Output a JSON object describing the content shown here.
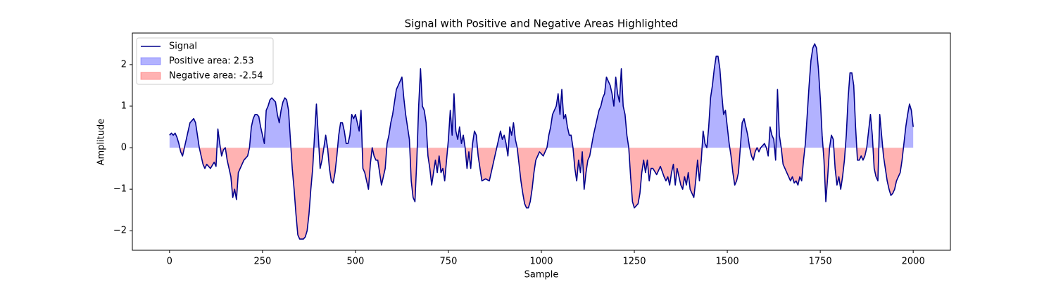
{
  "chart_data": {
    "type": "line",
    "title": "Signal with Positive and Negative Areas Highlighted",
    "xlabel": "Sample",
    "ylabel": "Amplitude",
    "x": [
      0,
      5,
      10,
      15,
      20,
      25,
      30,
      35,
      40,
      45,
      50,
      55,
      60,
      65,
      70,
      75,
      80,
      85,
      90,
      95,
      100,
      110,
      120,
      125,
      130,
      135,
      140,
      145,
      150,
      155,
      160,
      165,
      170,
      175,
      180,
      185,
      190,
      195,
      200,
      210,
      215,
      220,
      225,
      230,
      235,
      240,
      245,
      250,
      255,
      260,
      265,
      270,
      275,
      280,
      285,
      290,
      295,
      300,
      305,
      310,
      315,
      320,
      325,
      330,
      335,
      340,
      345,
      350,
      360,
      365,
      370,
      375,
      380,
      385,
      390,
      395,
      400,
      405,
      410,
      415,
      420,
      425,
      430,
      435,
      440,
      445,
      450,
      455,
      460,
      465,
      470,
      475,
      480,
      485,
      490,
      495,
      500,
      505,
      510,
      515,
      520,
      525,
      530,
      535,
      540,
      545,
      550,
      555,
      560,
      565,
      570,
      575,
      580,
      585,
      590,
      595,
      600,
      605,
      610,
      620,
      625,
      630,
      635,
      640,
      645,
      650,
      655,
      660,
      665,
      670,
      675,
      680,
      685,
      690,
      695,
      700,
      705,
      710,
      715,
      720,
      725,
      730,
      735,
      740,
      745,
      750,
      755,
      760,
      765,
      770,
      775,
      780,
      785,
      790,
      795,
      800,
      805,
      810,
      815,
      820,
      825,
      830,
      835,
      840,
      850,
      860,
      865,
      870,
      875,
      880,
      885,
      890,
      895,
      900,
      905,
      910,
      915,
      920,
      925,
      930,
      935,
      940,
      945,
      950,
      955,
      960,
      965,
      970,
      975,
      980,
      985,
      990,
      995,
      1000,
      1005,
      1010,
      1015,
      1020,
      1025,
      1030,
      1040,
      1045,
      1050,
      1055,
      1060,
      1065,
      1070,
      1075,
      1080,
      1085,
      1090,
      1095,
      1100,
      1105,
      1110,
      1115,
      1120,
      1125,
      1130,
      1140,
      1145,
      1150,
      1155,
      1160,
      1165,
      1170,
      1175,
      1180,
      1185,
      1190,
      1195,
      1200,
      1205,
      1210,
      1215,
      1220,
      1225,
      1230,
      1235,
      1240,
      1245,
      1250,
      1255,
      1260,
      1265,
      1270,
      1275,
      1280,
      1285,
      1290,
      1295,
      1300,
      1310,
      1320,
      1330,
      1335,
      1340,
      1345,
      1350,
      1355,
      1360,
      1365,
      1370,
      1375,
      1380,
      1385,
      1390,
      1395,
      1400,
      1405,
      1410,
      1415,
      1420,
      1425,
      1430,
      1435,
      1440,
      1445,
      1450,
      1455,
      1460,
      1465,
      1470,
      1475,
      1480,
      1485,
      1490,
      1495,
      1500,
      1505,
      1510,
      1515,
      1520,
      1525,
      1530,
      1535,
      1540,
      1545,
      1550,
      1555,
      1560,
      1565,
      1570,
      1575,
      1580,
      1585,
      1590,
      1600,
      1605,
      1610,
      1615,
      1620,
      1625,
      1630,
      1635,
      1640,
      1645,
      1650,
      1655,
      1660,
      1665,
      1670,
      1675,
      1680,
      1685,
      1690,
      1695,
      1700,
      1705,
      1710,
      1715,
      1720,
      1725,
      1730,
      1735,
      1740,
      1745,
      1750,
      1755,
      1760,
      1765,
      1770,
      1775,
      1780,
      1785,
      1790,
      1795,
      1800,
      1805,
      1810,
      1815,
      1820,
      1825,
      1830,
      1835,
      1840,
      1845,
      1850,
      1855,
      1860,
      1865,
      1870,
      1875,
      1880,
      1885,
      1890,
      1895,
      1900,
      1905,
      1910,
      1915,
      1920,
      1925,
      1930,
      1935,
      1940,
      1945,
      1950,
      1955,
      1960,
      1965,
      1970,
      1975,
      1980,
      1985,
      1990,
      1995,
      2000
    ],
    "series": [
      {
        "name": "Signal",
        "color": "#00008b",
        "values": [
          0.3,
          0.35,
          0.3,
          0.35,
          0.25,
          0.1,
          -0.1,
          -0.2,
          0.0,
          0.2,
          0.4,
          0.6,
          0.65,
          0.7,
          0.6,
          0.3,
          0.0,
          -0.2,
          -0.4,
          -0.5,
          -0.4,
          -0.5,
          -0.35,
          -0.45,
          0.45,
          0.1,
          -0.2,
          -0.05,
          0.0,
          -0.3,
          -0.5,
          -0.7,
          -1.2,
          -1.0,
          -1.25,
          -0.6,
          -0.5,
          -0.4,
          -0.3,
          -0.2,
          0.0,
          0.5,
          0.7,
          0.8,
          0.8,
          0.75,
          0.5,
          0.3,
          0.1,
          0.9,
          1.0,
          1.15,
          1.2,
          1.15,
          1.1,
          0.8,
          0.6,
          0.9,
          1.1,
          1.2,
          1.15,
          0.9,
          0.2,
          -0.5,
          -1.0,
          -1.6,
          -2.1,
          -2.2,
          -2.2,
          -2.15,
          -2.0,
          -1.6,
          -1.0,
          -0.5,
          0.3,
          1.05,
          0.3,
          -0.5,
          -0.3,
          0.0,
          0.3,
          0.0,
          -0.5,
          -0.8,
          -0.85,
          -0.6,
          -0.2,
          0.3,
          0.6,
          0.6,
          0.4,
          0.1,
          0.1,
          0.3,
          0.8,
          0.7,
          0.8,
          0.6,
          0.4,
          0.9,
          -0.5,
          -0.6,
          -0.8,
          -1.0,
          -0.4,
          0.0,
          -0.2,
          -0.3,
          -0.3,
          -0.6,
          -0.9,
          -0.7,
          -0.5,
          0.1,
          0.3,
          0.6,
          0.8,
          1.1,
          1.4,
          1.6,
          1.7,
          1.2,
          0.8,
          0.5,
          0.2,
          -0.8,
          -1.2,
          -1.3,
          -0.3,
          1.0,
          1.9,
          1.0,
          0.9,
          0.6,
          -0.2,
          -0.5,
          -0.9,
          -0.6,
          -0.3,
          -0.6,
          -0.2,
          -0.6,
          -0.5,
          -0.8,
          -0.3,
          0.2,
          0.9,
          0.3,
          1.3,
          0.4,
          0.2,
          0.5,
          0.1,
          0.3,
          0.0,
          -0.5,
          -0.1,
          -0.5,
          0.1,
          0.4,
          0.3,
          -0.2,
          -0.5,
          -0.8,
          -0.75,
          -0.8,
          -0.6,
          -0.4,
          -0.2,
          0.0,
          0.2,
          0.4,
          0.2,
          0.3,
          0.1,
          -0.2,
          0.5,
          0.3,
          0.6,
          0.2,
          0.0,
          -0.4,
          -0.8,
          -1.1,
          -1.35,
          -1.45,
          -1.45,
          -1.3,
          -1.0,
          -0.6,
          -0.3,
          -0.2,
          -0.1,
          -0.15,
          -0.2,
          -0.1,
          0.0,
          0.3,
          0.5,
          0.8,
          1.0,
          1.3,
          0.8,
          1.4,
          0.7,
          0.8,
          0.5,
          0.3,
          0.3,
          0.0,
          -0.5,
          -0.8,
          -0.3,
          -0.6,
          -0.1,
          -1.0,
          -0.6,
          -0.3,
          -0.2,
          0.3,
          0.5,
          0.7,
          0.9,
          1.0,
          1.2,
          1.3,
          1.7,
          1.6,
          1.5,
          1.3,
          1.0,
          1.7,
          1.3,
          1.1,
          1.9,
          1.0,
          0.8,
          0.3,
          0.0,
          -0.7,
          -1.3,
          -1.45,
          -1.4,
          -1.35,
          -1.1,
          -0.6,
          -0.3,
          -0.6,
          -0.3,
          -0.8,
          -0.5,
          -0.5,
          -0.65,
          -0.45,
          -0.7,
          -0.8,
          -0.7,
          -0.9,
          -0.6,
          -0.4,
          -0.9,
          -0.5,
          -0.7,
          -0.9,
          -1.0,
          -0.7,
          -0.9,
          -0.6,
          -1.0,
          -1.1,
          -1.2,
          -0.8,
          -0.3,
          -0.8,
          -0.3,
          0.4,
          0.1,
          0.0,
          0.5,
          1.2,
          1.5,
          1.9,
          2.2,
          2.2,
          1.9,
          1.3,
          0.8,
          0.9,
          0.5,
          0.1,
          -0.2,
          -0.6,
          -0.9,
          -0.8,
          -0.6,
          0.0,
          0.6,
          0.7,
          0.5,
          0.3,
          0.0,
          -0.2,
          -0.3,
          -0.1,
          0.0,
          -0.1,
          0.0,
          0.1,
          0.0,
          -0.2,
          0.5,
          0.3,
          0.2,
          -0.3,
          1.4,
          0.3,
          0.0,
          -0.4,
          -0.5,
          -0.6,
          -0.7,
          -0.8,
          -0.7,
          -0.85,
          -0.8,
          -0.9,
          -0.7,
          -0.8,
          -0.3,
          0.1,
          0.8,
          1.5,
          2.1,
          2.4,
          2.5,
          2.4,
          1.9,
          1.2,
          0.3,
          -0.3,
          -1.3,
          -0.7,
          0.0,
          0.3,
          0.2,
          -0.5,
          -0.9,
          -0.7,
          -1.0,
          -0.7,
          -0.3,
          0.3,
          1.2,
          1.8,
          1.8,
          1.5,
          0.5,
          -0.3,
          -0.3,
          -0.2,
          -0.3,
          -0.2,
          0.0,
          0.4,
          0.8,
          0.3,
          -0.5,
          -0.7,
          -0.8,
          0.8,
          0.3,
          -0.2,
          -0.5,
          -0.8,
          -1.0,
          -1.15,
          -1.1,
          -1.0,
          -0.8,
          -0.7,
          -0.6,
          -0.3,
          0.1,
          0.5,
          0.8,
          1.05,
          0.9,
          0.5
        ]
      }
    ],
    "areas": [
      {
        "name": "Positive area: 2.53",
        "color": "#0000ff",
        "where": "above"
      },
      {
        "name": "Negative area: -2.54",
        "color": "#ff0000",
        "where": "below"
      }
    ],
    "xlim": [
      -100,
      2100
    ],
    "ylim": [
      -2.47,
      2.76
    ],
    "xticks": [
      0,
      250,
      500,
      750,
      1000,
      1250,
      1500,
      1750,
      2000
    ],
    "yticks": [
      {
        "value": -2,
        "label": "−2"
      },
      {
        "value": -1,
        "label": "−1"
      },
      0,
      1,
      2
    ],
    "legend": "upper left"
  }
}
